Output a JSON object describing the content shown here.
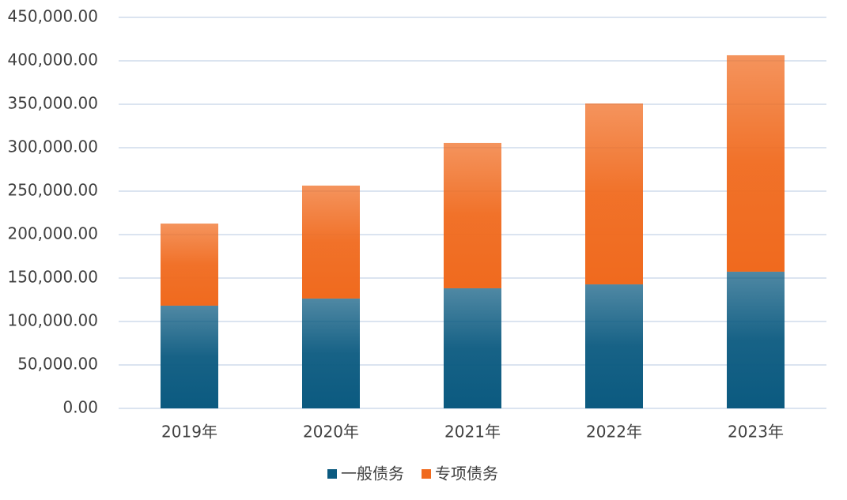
{
  "chart_data": {
    "type": "stacked_bar",
    "categories": [
      "2019年",
      "2020年",
      "2021年",
      "2022年",
      "2023年"
    ],
    "series": [
      {
        "name": "一般债务",
        "color": "#0b5a80",
        "values": [
          118200,
          126400,
          138200,
          142700,
          157300
        ]
      },
      {
        "name": "专项债务",
        "color": "#f06a1e",
        "values": [
          94500,
          130000,
          167300,
          208200,
          249100
        ]
      }
    ],
    "ylim": [
      0,
      450000
    ],
    "yticks": [
      {
        "value": 0,
        "label": "0.00"
      },
      {
        "value": 50000,
        "label": "50,000.00"
      },
      {
        "value": 100000,
        "label": "100,000.00"
      },
      {
        "value": 150000,
        "label": "150,000.00"
      },
      {
        "value": 200000,
        "label": "200,000.00"
      },
      {
        "value": 250000,
        "label": "250,000.00"
      },
      {
        "value": 300000,
        "label": "300,000.00"
      },
      {
        "value": 350000,
        "label": "350,000.00"
      },
      {
        "value": 400000,
        "label": "400,000.00"
      },
      {
        "value": 450000,
        "label": "450,000.00"
      }
    ],
    "grid": true,
    "legend": "bottom"
  }
}
